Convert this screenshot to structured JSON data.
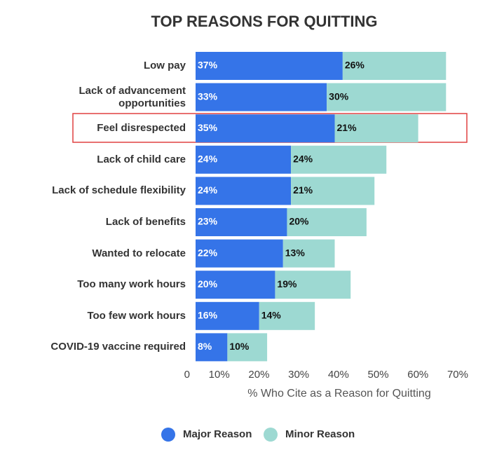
{
  "chart_data": {
    "type": "stacked-bar-horizontal",
    "title": "TOP REASONS FOR QUITTING",
    "categories": [
      "Low pay",
      "Lack of advancement opportunities",
      "Feel disrespected",
      "Lack of child care",
      "Lack of schedule flexibility",
      "Lack of benefits",
      "Wanted to relocate",
      "Too many work hours",
      "Too few work hours",
      "COVID-19 vaccine required"
    ],
    "series": [
      {
        "name": "Major Reason",
        "color": "#3574e8",
        "values": [
          37,
          33,
          35,
          24,
          24,
          23,
          22,
          20,
          16,
          8
        ],
        "value_labels": [
          "37%",
          "33%",
          "35%",
          "24%",
          "24%",
          "23%",
          "22%",
          "20%",
          "16%",
          "8%"
        ]
      },
      {
        "name": "Minor Reason",
        "color": "#9dd9d2",
        "values": [
          26,
          30,
          21,
          24,
          21,
          20,
          13,
          19,
          14,
          10
        ],
        "value_labels": [
          "26%",
          "30%",
          "21%",
          "24%",
          "21%",
          "20%",
          "13%",
          "19%",
          "14%",
          "10%"
        ]
      }
    ],
    "xlim": [
      0,
      70
    ],
    "xticks": [
      0,
      {
        "value": 10,
        "label": "10%"
      },
      {
        "value": 20,
        "label": "20%"
      },
      {
        "value": 30,
        "label": "30%"
      },
      {
        "value": 40,
        "label": "40%"
      },
      {
        "value": 50,
        "label": "50%"
      },
      {
        "value": 60,
        "label": "60%"
      },
      {
        "value": 70,
        "label": "70%"
      }
    ],
    "x_label": "% Who Cite as a Reason for Quitting",
    "legend": "bottom"
  }
}
